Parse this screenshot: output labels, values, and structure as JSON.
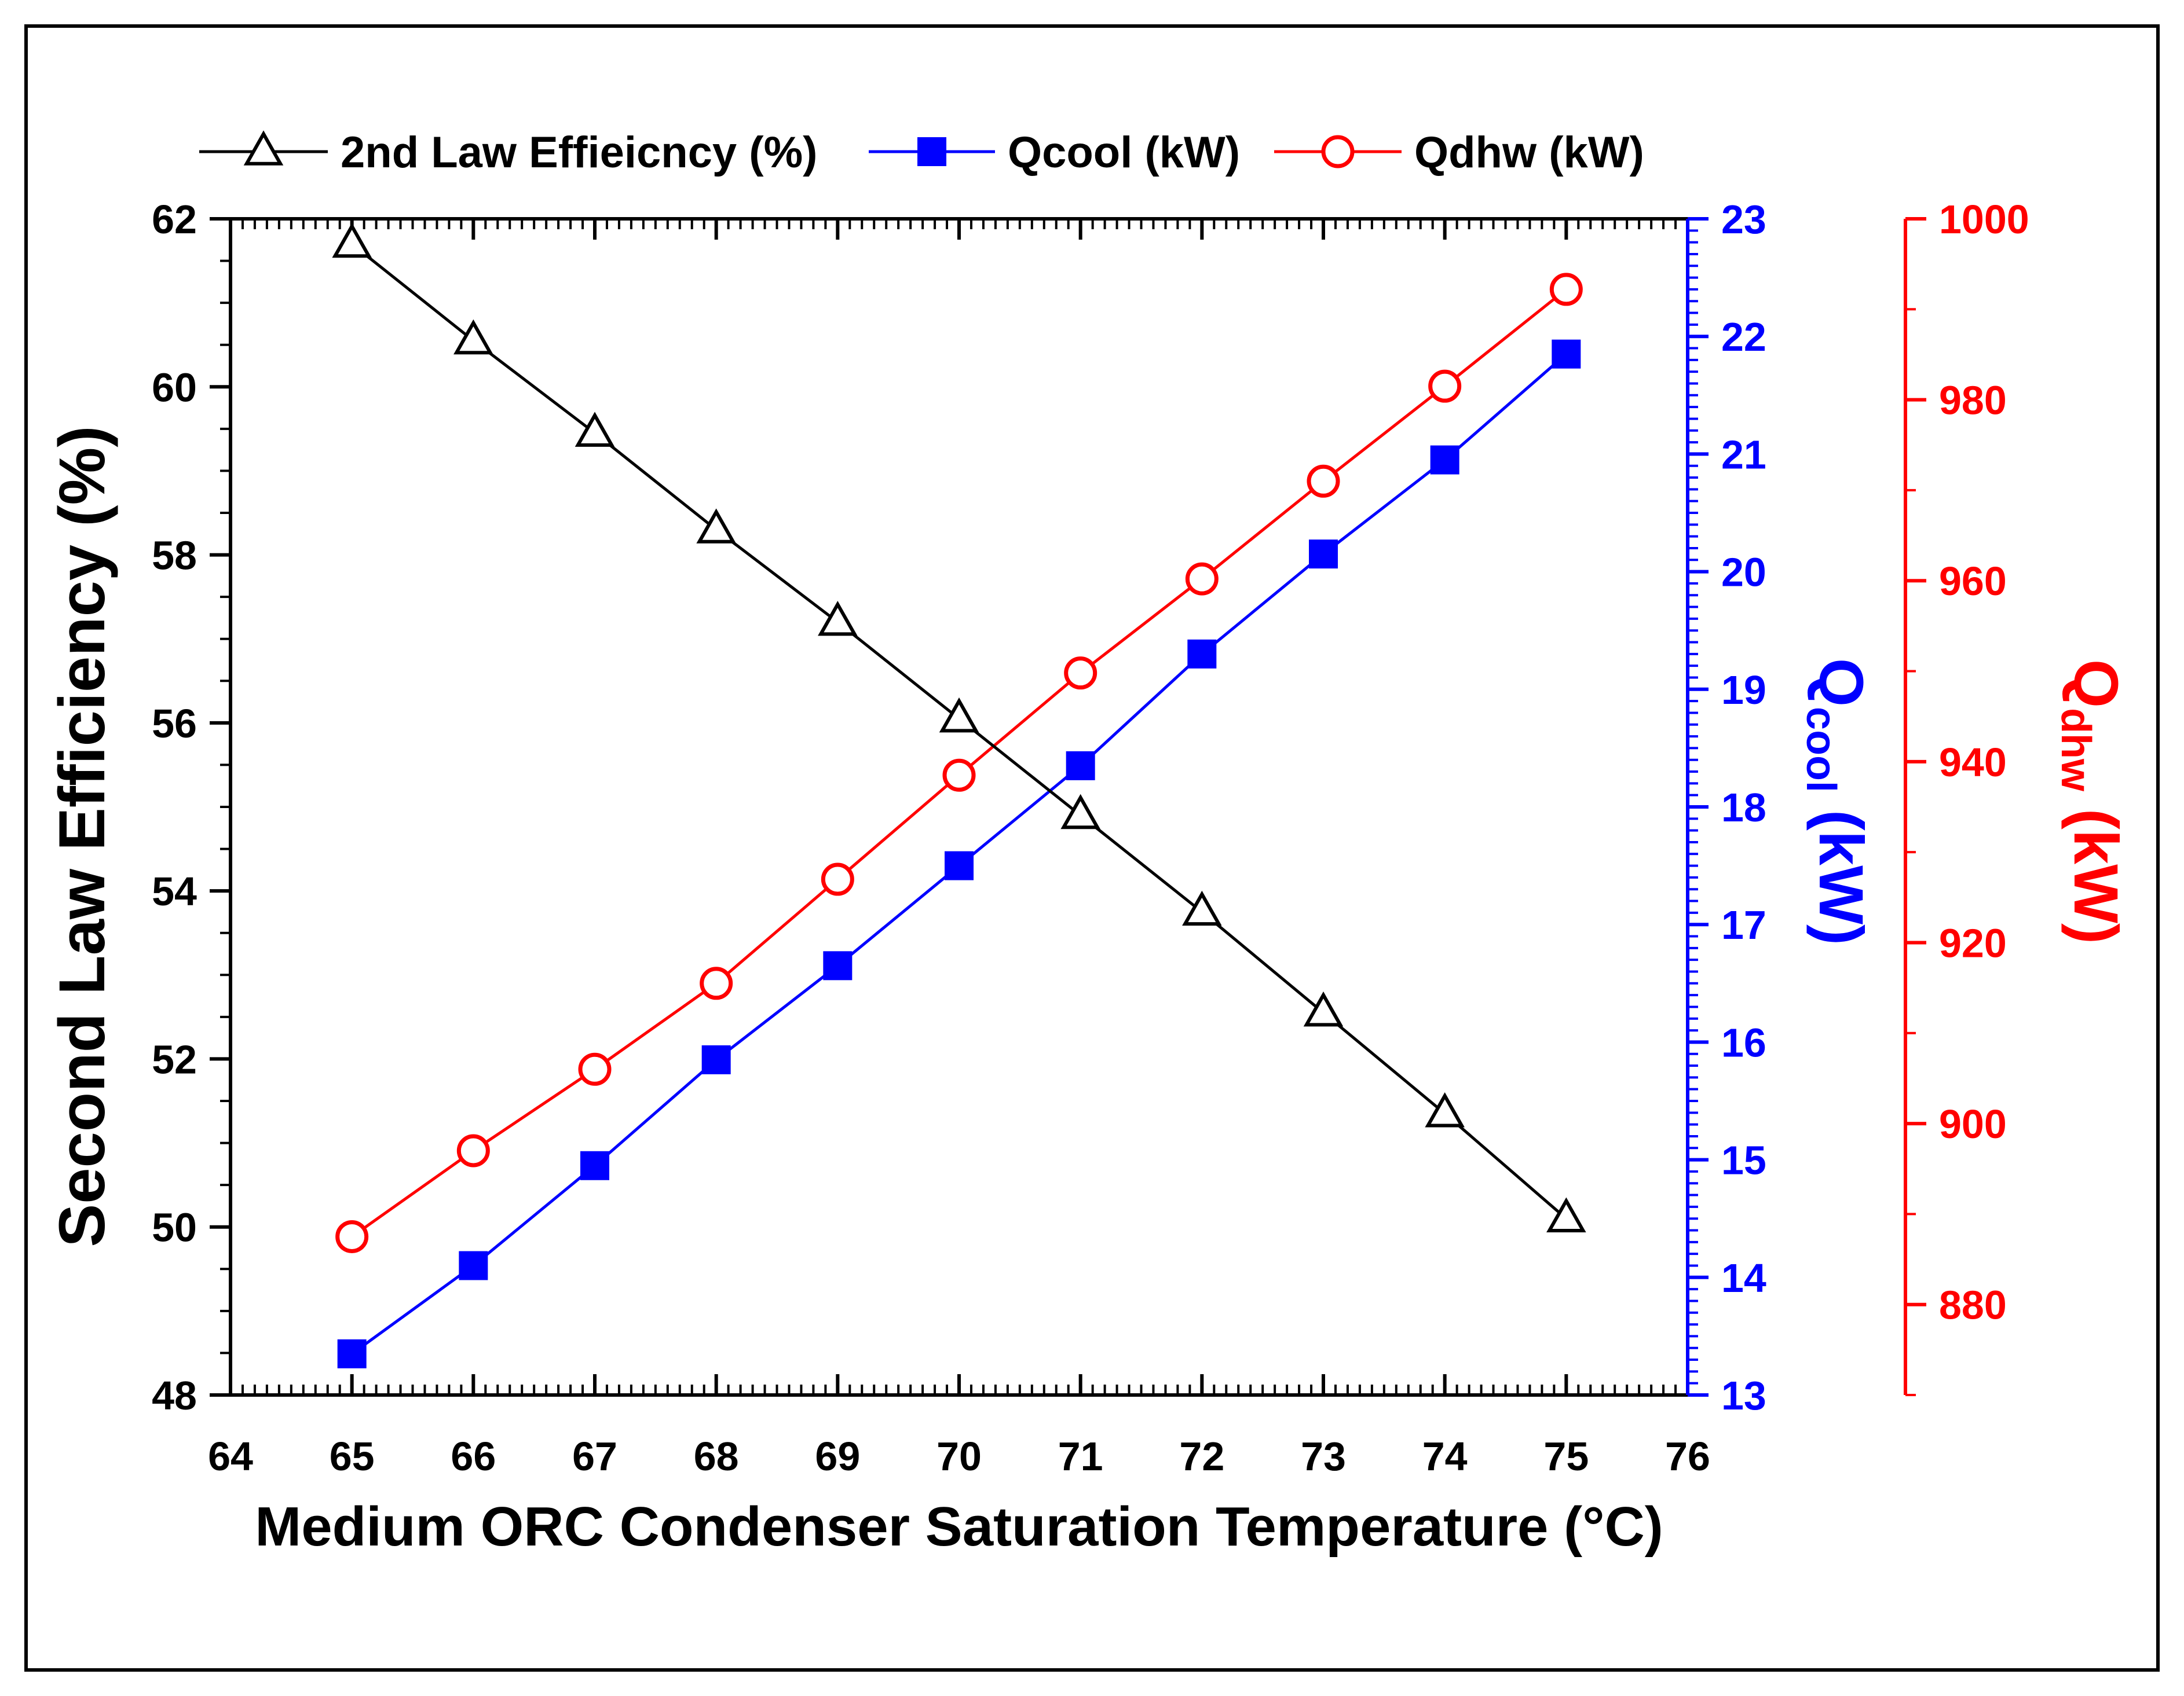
{
  "chart_data": {
    "type": "line",
    "x": [
      65,
      66,
      67,
      68,
      69,
      70,
      71,
      72,
      73,
      74,
      75
    ],
    "xlabel": "Medium ORC Condenser Saturation Temperature (°C)",
    "xlim": [
      64,
      76
    ],
    "xticks": [
      "64",
      "65",
      "66",
      "67",
      "68",
      "69",
      "70",
      "71",
      "72",
      "73",
      "74",
      "75",
      "76"
    ],
    "axes": {
      "left": {
        "label": "Second Law Efficiency (%)",
        "ylim": [
          48,
          62
        ],
        "ticks": [
          "48",
          "50",
          "52",
          "54",
          "56",
          "58",
          "60",
          "62"
        ],
        "color": "#000000"
      },
      "right1": {
        "label_main": "Q",
        "label_sub": "cool",
        "label_unit": " (kW)",
        "ylim": [
          13,
          23
        ],
        "ticks": [
          "13",
          "14",
          "15",
          "16",
          "17",
          "18",
          "19",
          "20",
          "21",
          "22",
          "23"
        ],
        "color": "#0000ff"
      },
      "right2": {
        "label_main": "Q",
        "label_sub": "dhw",
        "label_unit": " (kW)",
        "ylim": [
          870,
          1000
        ],
        "ticks": [
          "880",
          "900",
          "920",
          "940",
          "960",
          "980",
          "1000"
        ],
        "color": "#ff0000"
      }
    },
    "series": [
      {
        "name": "2nd Law Effieicncy (%)",
        "axis": "left",
        "marker": "open-triangle",
        "color": "#000000",
        "values": [
          61.7,
          60.55,
          59.45,
          58.3,
          57.2,
          56.05,
          54.9,
          53.75,
          52.55,
          51.35,
          50.1
        ]
      },
      {
        "name": "Qcool (kW)",
        "axis": "right1",
        "marker": "filled-square",
        "color": "#0000ff",
        "values": [
          13.35,
          14.1,
          14.95,
          15.85,
          16.65,
          17.5,
          18.35,
          19.3,
          20.15,
          20.95,
          21.85
        ]
      },
      {
        "name": "Qdhw (kW)",
        "axis": "right2",
        "marker": "open-circle",
        "color": "#ff0000",
        "values": [
          887.5,
          897,
          906,
          915.5,
          927,
          938.5,
          949.8,
          960.2,
          971,
          981.5,
          992.2
        ]
      }
    ],
    "legend": "top"
  }
}
